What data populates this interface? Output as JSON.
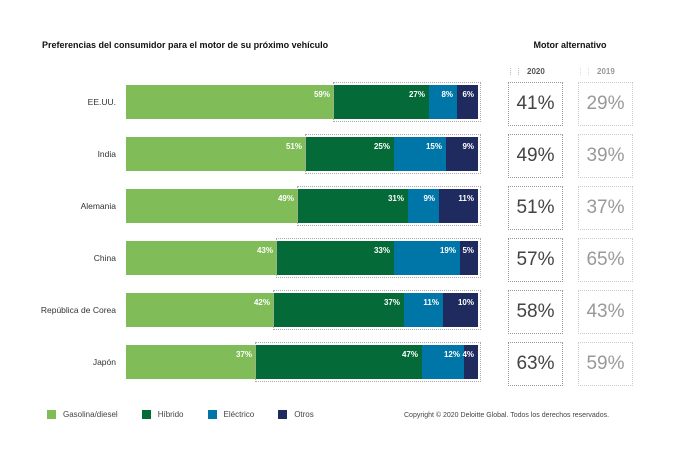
{
  "chart_data": {
    "type": "bar",
    "orientation": "horizontal",
    "stacked": true,
    "title": "Preferencias del consumidor para el motor de su próximo vehículo",
    "categories": [
      "EE.UU.",
      "India",
      "Alemania",
      "China",
      "República de Corea",
      "Japón"
    ],
    "series": [
      {
        "name": "Gasolina/diesel",
        "color": "#80BC57",
        "values": [
          59,
          51,
          49,
          43,
          42,
          37
        ]
      },
      {
        "name": "Híbrido",
        "color": "#046A38",
        "values": [
          27,
          25,
          31,
          33,
          37,
          47
        ]
      },
      {
        "name": "Eléctrico",
        "color": "#0076A8",
        "values": [
          8,
          15,
          9,
          19,
          11,
          12
        ]
      },
      {
        "name": "Otros",
        "color": "#1F2A5E",
        "values": [
          6,
          9,
          11,
          5,
          10,
          4
        ]
      }
    ],
    "value_suffix": "%",
    "xlim": [
      0,
      100
    ],
    "legend_position": "bottom-left",
    "side_table": {
      "title": "Motor alternativo",
      "columns": [
        "2020",
        "2019"
      ],
      "values_2020": [
        "41%",
        "49%",
        "51%",
        "57%",
        "58%",
        "63%"
      ],
      "values_2019": [
        "29%",
        "39%",
        "37%",
        "65%",
        "43%",
        "59%"
      ]
    }
  },
  "copyright": "Copyright © 2020 Deloitte Global. Todos los derechos reservados."
}
